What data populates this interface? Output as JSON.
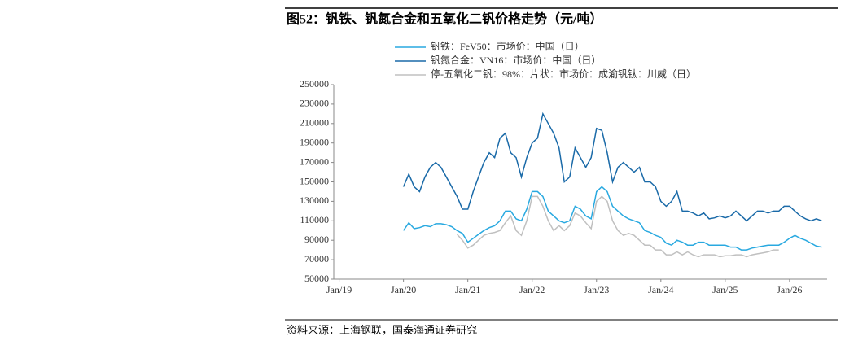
{
  "chart_data": {
    "type": "line",
    "title": "图52：钒铁、钒氮合金和五氧化二钒价格走势（元/吨）",
    "source": "资料来源：上海钢联，国泰海通证券研究",
    "x": [
      "2020-01",
      "2020-02",
      "2020-03",
      "2020-04",
      "2020-05",
      "2020-06",
      "2020-07",
      "2020-08",
      "2020-09",
      "2020-10",
      "2020-11",
      "2020-12",
      "2021-01",
      "2021-02",
      "2021-03",
      "2021-04",
      "2021-05",
      "2021-06",
      "2021-07",
      "2021-08",
      "2021-09",
      "2021-10",
      "2021-11",
      "2021-12",
      "2022-01",
      "2022-02",
      "2022-03",
      "2022-04",
      "2022-05",
      "2022-06",
      "2022-07",
      "2022-08",
      "2022-09",
      "2022-10",
      "2022-11",
      "2022-12",
      "2023-01",
      "2023-02",
      "2023-03",
      "2023-04",
      "2023-05",
      "2023-06",
      "2023-07",
      "2023-08",
      "2023-09",
      "2023-10",
      "2023-11",
      "2023-12",
      "2024-01",
      "2024-02",
      "2024-03",
      "2024-04",
      "2024-05",
      "2024-06",
      "2024-07",
      "2024-08",
      "2024-09",
      "2024-10",
      "2024-11",
      "2024-12",
      "2025-01",
      "2025-02",
      "2025-03",
      "2025-04",
      "2025-05",
      "2025-06",
      "2025-07",
      "2025-08",
      "2025-09",
      "2025-10",
      "2025-11",
      "2025-12",
      "2026-01",
      "2026-02",
      "2026-03",
      "2026-04",
      "2026-05",
      "2026-06",
      "2026-07"
    ],
    "series": [
      {
        "name": "钒铁：FeV50：市场价：中国（日）",
        "color": "#29a9e0",
        "values": [
          100000,
          108000,
          102000,
          103000,
          105000,
          104000,
          107000,
          107000,
          106000,
          104000,
          100000,
          97000,
          88000,
          92000,
          96000,
          100000,
          103000,
          105000,
          110000,
          120000,
          120000,
          112000,
          110000,
          122000,
          140000,
          140000,
          135000,
          120000,
          115000,
          110000,
          108000,
          110000,
          125000,
          122000,
          115000,
          112000,
          140000,
          145000,
          140000,
          125000,
          120000,
          115000,
          112000,
          110000,
          108000,
          100000,
          98000,
          95000,
          93000,
          87000,
          85000,
          90000,
          88000,
          85000,
          85000,
          88000,
          88000,
          85000,
          85000,
          85000,
          85000,
          83000,
          83000,
          80000,
          80000,
          82000,
          83000,
          84000,
          85000,
          85000,
          85000,
          88000,
          92000,
          95000,
          92000,
          90000,
          87000,
          84000,
          83000
        ]
      },
      {
        "name": "钒氮合金：VN16：市场价：中国（日）",
        "color": "#1a6aa8",
        "values": [
          145000,
          158000,
          145000,
          140000,
          155000,
          165000,
          170000,
          165000,
          155000,
          145000,
          135000,
          122000,
          122000,
          140000,
          155000,
          170000,
          180000,
          175000,
          195000,
          200000,
          180000,
          175000,
          155000,
          175000,
          190000,
          195000,
          220000,
          210000,
          200000,
          185000,
          150000,
          155000,
          185000,
          175000,
          165000,
          175000,
          205000,
          203000,
          180000,
          150000,
          165000,
          170000,
          165000,
          160000,
          165000,
          150000,
          150000,
          145000,
          130000,
          125000,
          130000,
          140000,
          120000,
          120000,
          118000,
          115000,
          118000,
          112000,
          113000,
          115000,
          113000,
          115000,
          120000,
          115000,
          110000,
          115000,
          120000,
          120000,
          118000,
          120000,
          120000,
          125000,
          125000,
          120000,
          115000,
          112000,
          110000,
          112000,
          110000
        ]
      },
      {
        "name": "停-五氧化二钒：98%：片状：市场价：成渝钒钛：川威（日）",
        "color": "#c0c0c0",
        "values": [
          null,
          null,
          null,
          null,
          null,
          null,
          null,
          null,
          null,
          null,
          96000,
          90000,
          82000,
          85000,
          90000,
          95000,
          97000,
          98000,
          100000,
          108000,
          115000,
          100000,
          95000,
          110000,
          135000,
          135000,
          125000,
          110000,
          100000,
          105000,
          100000,
          105000,
          118000,
          115000,
          108000,
          102000,
          130000,
          135000,
          130000,
          110000,
          100000,
          95000,
          97000,
          95000,
          90000,
          85000,
          85000,
          80000,
          80000,
          75000,
          75000,
          78000,
          75000,
          78000,
          75000,
          73000,
          75000,
          75000,
          75000,
          73000,
          74000,
          74000,
          75000,
          75000,
          73000,
          75000,
          76000,
          77000,
          78000,
          80000,
          80000,
          null,
          null,
          null,
          null,
          null,
          null,
          null,
          null
        ]
      }
    ],
    "xlim": [
      "2018-12",
      "2026-08"
    ],
    "xticks": [
      {
        "value": "2019-01",
        "label": "Jan/19"
      },
      {
        "value": "2020-01",
        "label": "Jan/20"
      },
      {
        "value": "2021-01",
        "label": "Jan/21"
      },
      {
        "value": "2022-01",
        "label": "Jan/22"
      },
      {
        "value": "2023-01",
        "label": "Jan/23"
      },
      {
        "value": "2024-01",
        "label": "Jan/24"
      },
      {
        "value": "2025-01",
        "label": "Jan/25"
      },
      {
        "value": "2026-01",
        "label": "Jan/26"
      }
    ],
    "ylim": [
      50000,
      250000
    ],
    "yticks": [
      50000,
      70000,
      90000,
      110000,
      130000,
      150000,
      170000,
      190000,
      210000,
      230000,
      250000
    ],
    "grid": false,
    "legend": "top"
  }
}
